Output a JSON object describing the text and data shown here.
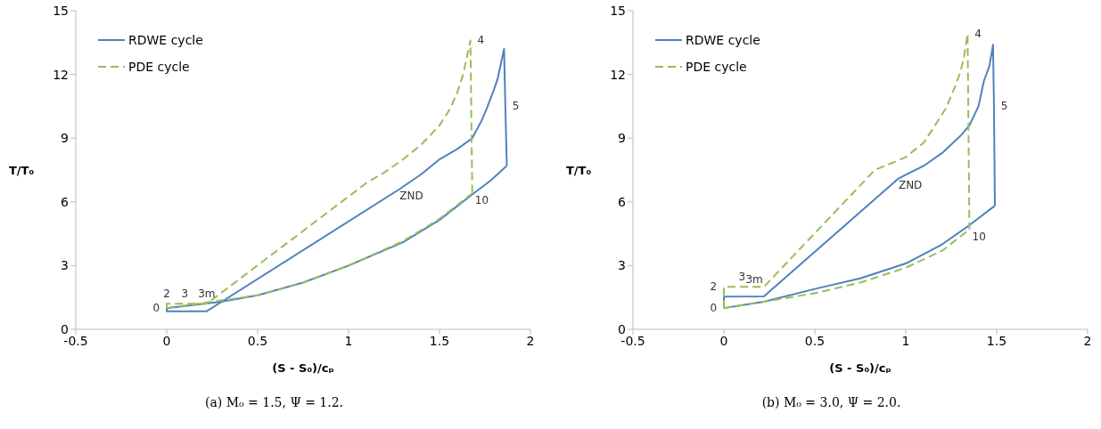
{
  "chart_data": [
    {
      "type": "line",
      "xlabel": "(S - S₀)/cₚ",
      "ylabel": "T/T₀",
      "xlim": [
        -0.5,
        2
      ],
      "xticks": [
        -0.5,
        0,
        0.5,
        1,
        1.5,
        2
      ],
      "ylim": [
        0,
        15
      ],
      "yticks": [
        0,
        3,
        6,
        9,
        12,
        15
      ],
      "grid": false,
      "legend": "top left",
      "marker": "none",
      "series": [
        {
          "name": "RDWE cycle",
          "color": "#4f81bd",
          "line_style": "solid",
          "x": [
            0,
            0,
            0.22,
            1.28,
            1.4,
            1.5,
            1.6,
            1.68,
            1.73,
            1.76,
            1.8,
            1.82,
            1.83,
            1.855,
            1.862,
            1.87
          ],
          "values": [
            1.0,
            0.85,
            0.85,
            6.6,
            7.3,
            8.0,
            8.5,
            9.0,
            9.8,
            10.4,
            11.3,
            11.8,
            12.2,
            13.2,
            10.5,
            7.7
          ]
        },
        {
          "color": "#4f81bd",
          "line_style": "solid",
          "x": [
            0,
            0.3,
            0.5,
            0.75,
            1.0,
            1.3,
            1.5,
            1.68,
            1.78,
            1.87
          ],
          "values": [
            1.0,
            1.3,
            1.6,
            2.2,
            3.0,
            4.1,
            5.15,
            6.35,
            7.0,
            7.7
          ]
        },
        {
          "name": "PDE cycle",
          "color": "#9bbb59",
          "line_style": "dashed",
          "x": [
            0,
            0,
            0.1,
            0.22,
            1.1,
            1.2,
            1.3,
            1.4,
            1.5,
            1.56,
            1.6,
            1.63,
            1.65,
            1.67,
            1.68
          ],
          "values": [
            1.0,
            1.2,
            1.2,
            1.2,
            6.9,
            7.4,
            8.0,
            8.7,
            9.6,
            10.4,
            11.2,
            12.0,
            12.8,
            13.6,
            6.4
          ]
        },
        {
          "color": "#9bbb59",
          "line_style": "dashed",
          "x": [
            0,
            0.5,
            0.75,
            1.0,
            1.3,
            1.5,
            1.68
          ],
          "values": [
            1.0,
            1.6,
            2.2,
            3.0,
            4.15,
            5.2,
            6.4
          ]
        }
      ],
      "annotations": [
        {
          "text": "0",
          "x": 0,
          "y": 1.0
        },
        {
          "text": "2",
          "x": 0,
          "y": 1.2
        },
        {
          "text": "3",
          "x": 0.1,
          "y": 1.2
        },
        {
          "text": "3m",
          "x": 0.22,
          "y": 1.2
        },
        {
          "text": "ZND",
          "x": 1.28,
          "y": 6.6
        },
        {
          "text": "4",
          "x": 1.67,
          "y": 13.6
        },
        {
          "text": "5",
          "x": 1.862,
          "y": 10.5
        },
        {
          "text": "10",
          "x": 1.68,
          "y": 6.4
        },
        "(a) M₀ = 1.5, Ψ = 1.2."
      ]
    },
    {
      "type": "line",
      "xlabel": "(S - S₀)/cₚ",
      "ylabel": "T/T₀",
      "xlim": [
        -0.5,
        2
      ],
      "xticks": [
        -0.5,
        0,
        0.5,
        1,
        1.5,
        2
      ],
      "ylim": [
        0,
        15
      ],
      "yticks": [
        0,
        3,
        6,
        9,
        12,
        15
      ],
      "grid": false,
      "legend": "top left",
      "marker": "none",
      "series": [
        {
          "name": "RDWE cycle",
          "color": "#4f81bd",
          "line_style": "solid",
          "x": [
            0,
            0,
            0.22,
            0.96,
            1.1,
            1.2,
            1.3,
            1.35,
            1.4,
            1.43,
            1.46,
            1.48,
            1.485,
            1.49
          ],
          "values": [
            1.0,
            1.54,
            1.55,
            7.1,
            7.7,
            8.3,
            9.1,
            9.6,
            10.5,
            11.7,
            12.4,
            13.4,
            10.5,
            5.82
          ]
        },
        {
          "color": "#4f81bd",
          "line_style": "solid",
          "x": [
            0,
            0.22,
            0.5,
            0.75,
            1.0,
            1.2,
            1.35,
            1.49
          ],
          "values": [
            1.0,
            1.3,
            1.9,
            2.4,
            3.1,
            4.0,
            4.9,
            5.82
          ]
        },
        {
          "name": "PDE cycle",
          "color": "#9bbb59",
          "line_style": "dashed",
          "x": [
            0,
            0,
            0.1,
            0.22,
            0.83,
            1.0,
            1.1,
            1.15,
            1.22,
            1.27,
            1.3,
            1.32,
            1.34,
            1.35
          ],
          "values": [
            1.0,
            2.0,
            2.0,
            2.0,
            7.5,
            8.1,
            8.8,
            9.45,
            10.4,
            11.4,
            12.1,
            12.8,
            13.9,
            4.7
          ]
        },
        {
          "color": "#9bbb59",
          "line_style": "dashed",
          "x": [
            0,
            0.22,
            0.5,
            0.75,
            1.0,
            1.2,
            1.35
          ],
          "values": [
            1.0,
            1.3,
            1.7,
            2.2,
            2.9,
            3.7,
            4.7
          ]
        }
      ],
      "annotations": [
        {
          "text": "0",
          "x": 0,
          "y": 1.0
        },
        {
          "text": "2",
          "x": 0,
          "y": 2.0
        },
        {
          "text": "3",
          "x": 0.1,
          "y": 2.0
        },
        {
          "text": "3m",
          "x": 0.22,
          "y": 2.0
        },
        {
          "text": "ZND",
          "x": 0.96,
          "y": 7.1
        },
        {
          "text": "4",
          "x": 1.34,
          "y": 13.9
        },
        {
          "text": "5",
          "x": 1.485,
          "y": 10.5
        },
        {
          "text": "10",
          "x": 1.35,
          "y": 4.7
        },
        "(b) M₀ = 3.0, Ψ = 2.0."
      ]
    }
  ]
}
